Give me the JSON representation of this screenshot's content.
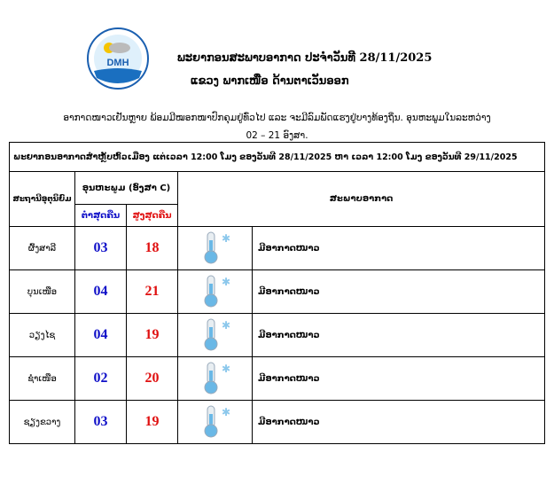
{
  "header": {
    "logo_text": "DMH",
    "title": "ພະຍາກອນສະພາບອາກາດ ປະຈຳວັນທີ 28/11/2025",
    "subtitle": "ແຂວງ ພາກເໜືອ  ດ້ານຕາເວັນອອກ"
  },
  "summary": {
    "line1": "ອາກາດໜາວເຢັນຫຼາຍ ພ້ອມມີໝອກໜາປົກຄຸມຢູ່ທົ່ວໄປ ແລະ ຈະມີລົມພັດແຮງຢູ່ບາງທ້ອງຖິ່ນ. ອຸນຫະພູມໃນລະຫວ່າງ",
    "line2": "02 – 21 ອົງສາ."
  },
  "table": {
    "period": "ພະຍາກອນອາກາດສຳຫຼັບຫົວເມືອງ ແຕ່ເວລາ 12:00 ໂມງ ຂອງວັນທີ 28/11/2025 ຫາ ເວລາ 12:00 ໂມງ ຂອງວັນທີ 29/11/2025",
    "col_station": "ສະຖານີອຸຕຸນິຍົມ",
    "col_temp": "ອຸນຫະພູມ (ອົງສາ C)",
    "col_min": "ຕ່ຳສຸດຄືນ",
    "col_max": "ສູງສຸດຄືນ",
    "col_weather": "ສະພາບອາກາດ",
    "colors": {
      "min": "#1010c8",
      "max": "#e01010"
    },
    "rows": [
      {
        "station": "ຜົ້ງສາລີ",
        "min": "03",
        "max": "18",
        "icon": "cold-thermometer-icon",
        "weather": "ມີອາກາດໜາວ"
      },
      {
        "station": "ບຸນເໜືອ",
        "min": "04",
        "max": "21",
        "icon": "cold-thermometer-icon",
        "weather": "ມີອາກາດໜາວ"
      },
      {
        "station": "ວຽງໄຊ",
        "min": "04",
        "max": "19",
        "icon": "cold-thermometer-icon",
        "weather": "ມີອາກາດໜາວ"
      },
      {
        "station": "ຊຳເໜືອ",
        "min": "02",
        "max": "20",
        "icon": "cold-thermometer-icon",
        "weather": "ມີອາກາດໜາວ"
      },
      {
        "station": "ຊຽງຂວາງ",
        "min": "03",
        "max": "19",
        "icon": "cold-thermometer-icon",
        "weather": "ມີອາກາດໜາວ"
      }
    ]
  }
}
